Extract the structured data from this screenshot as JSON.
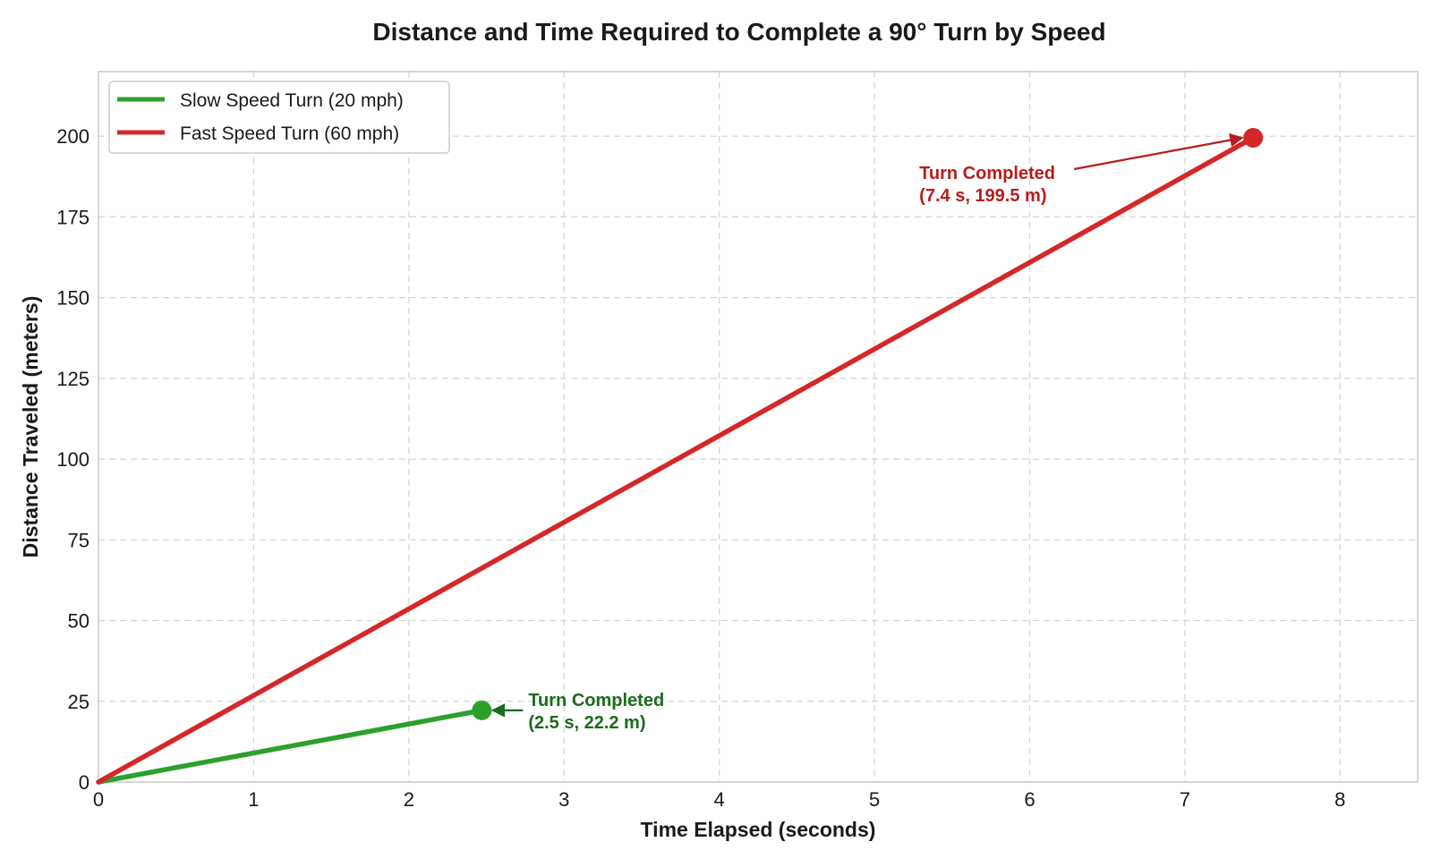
{
  "chart_data": {
    "type": "line",
    "title": "Distance and Time Required to Complete a 90° Turn by Speed",
    "xlabel": "Time Elapsed (seconds)",
    "ylabel": "Distance Traveled (meters)",
    "xlim": [
      0,
      8.5
    ],
    "ylim": [
      0,
      220
    ],
    "xticks": [
      0,
      1,
      2,
      3,
      4,
      5,
      6,
      7,
      8
    ],
    "yticks": [
      0,
      25,
      50,
      75,
      100,
      125,
      150,
      175,
      200
    ],
    "grid": true,
    "legend_position": "top-left",
    "series": [
      {
        "name": "Slow Speed Turn (20 mph)",
        "color": "#2ca02c",
        "x": [
          0,
          2.47
        ],
        "y": [
          0,
          22.2
        ],
        "end_marker": true,
        "annotation": {
          "lines": [
            "Turn Completed",
            "(2.5 s, 22.2 m)"
          ],
          "color": "#1a6b1a"
        }
      },
      {
        "name": "Fast Speed Turn (60 mph)",
        "color": "#d62728",
        "x": [
          0,
          7.44
        ],
        "y": [
          0,
          199.5
        ],
        "end_marker": true,
        "annotation": {
          "lines": [
            "Turn Completed",
            "(7.4 s, 199.5 m)"
          ],
          "color": "#b71c1c"
        }
      }
    ]
  }
}
